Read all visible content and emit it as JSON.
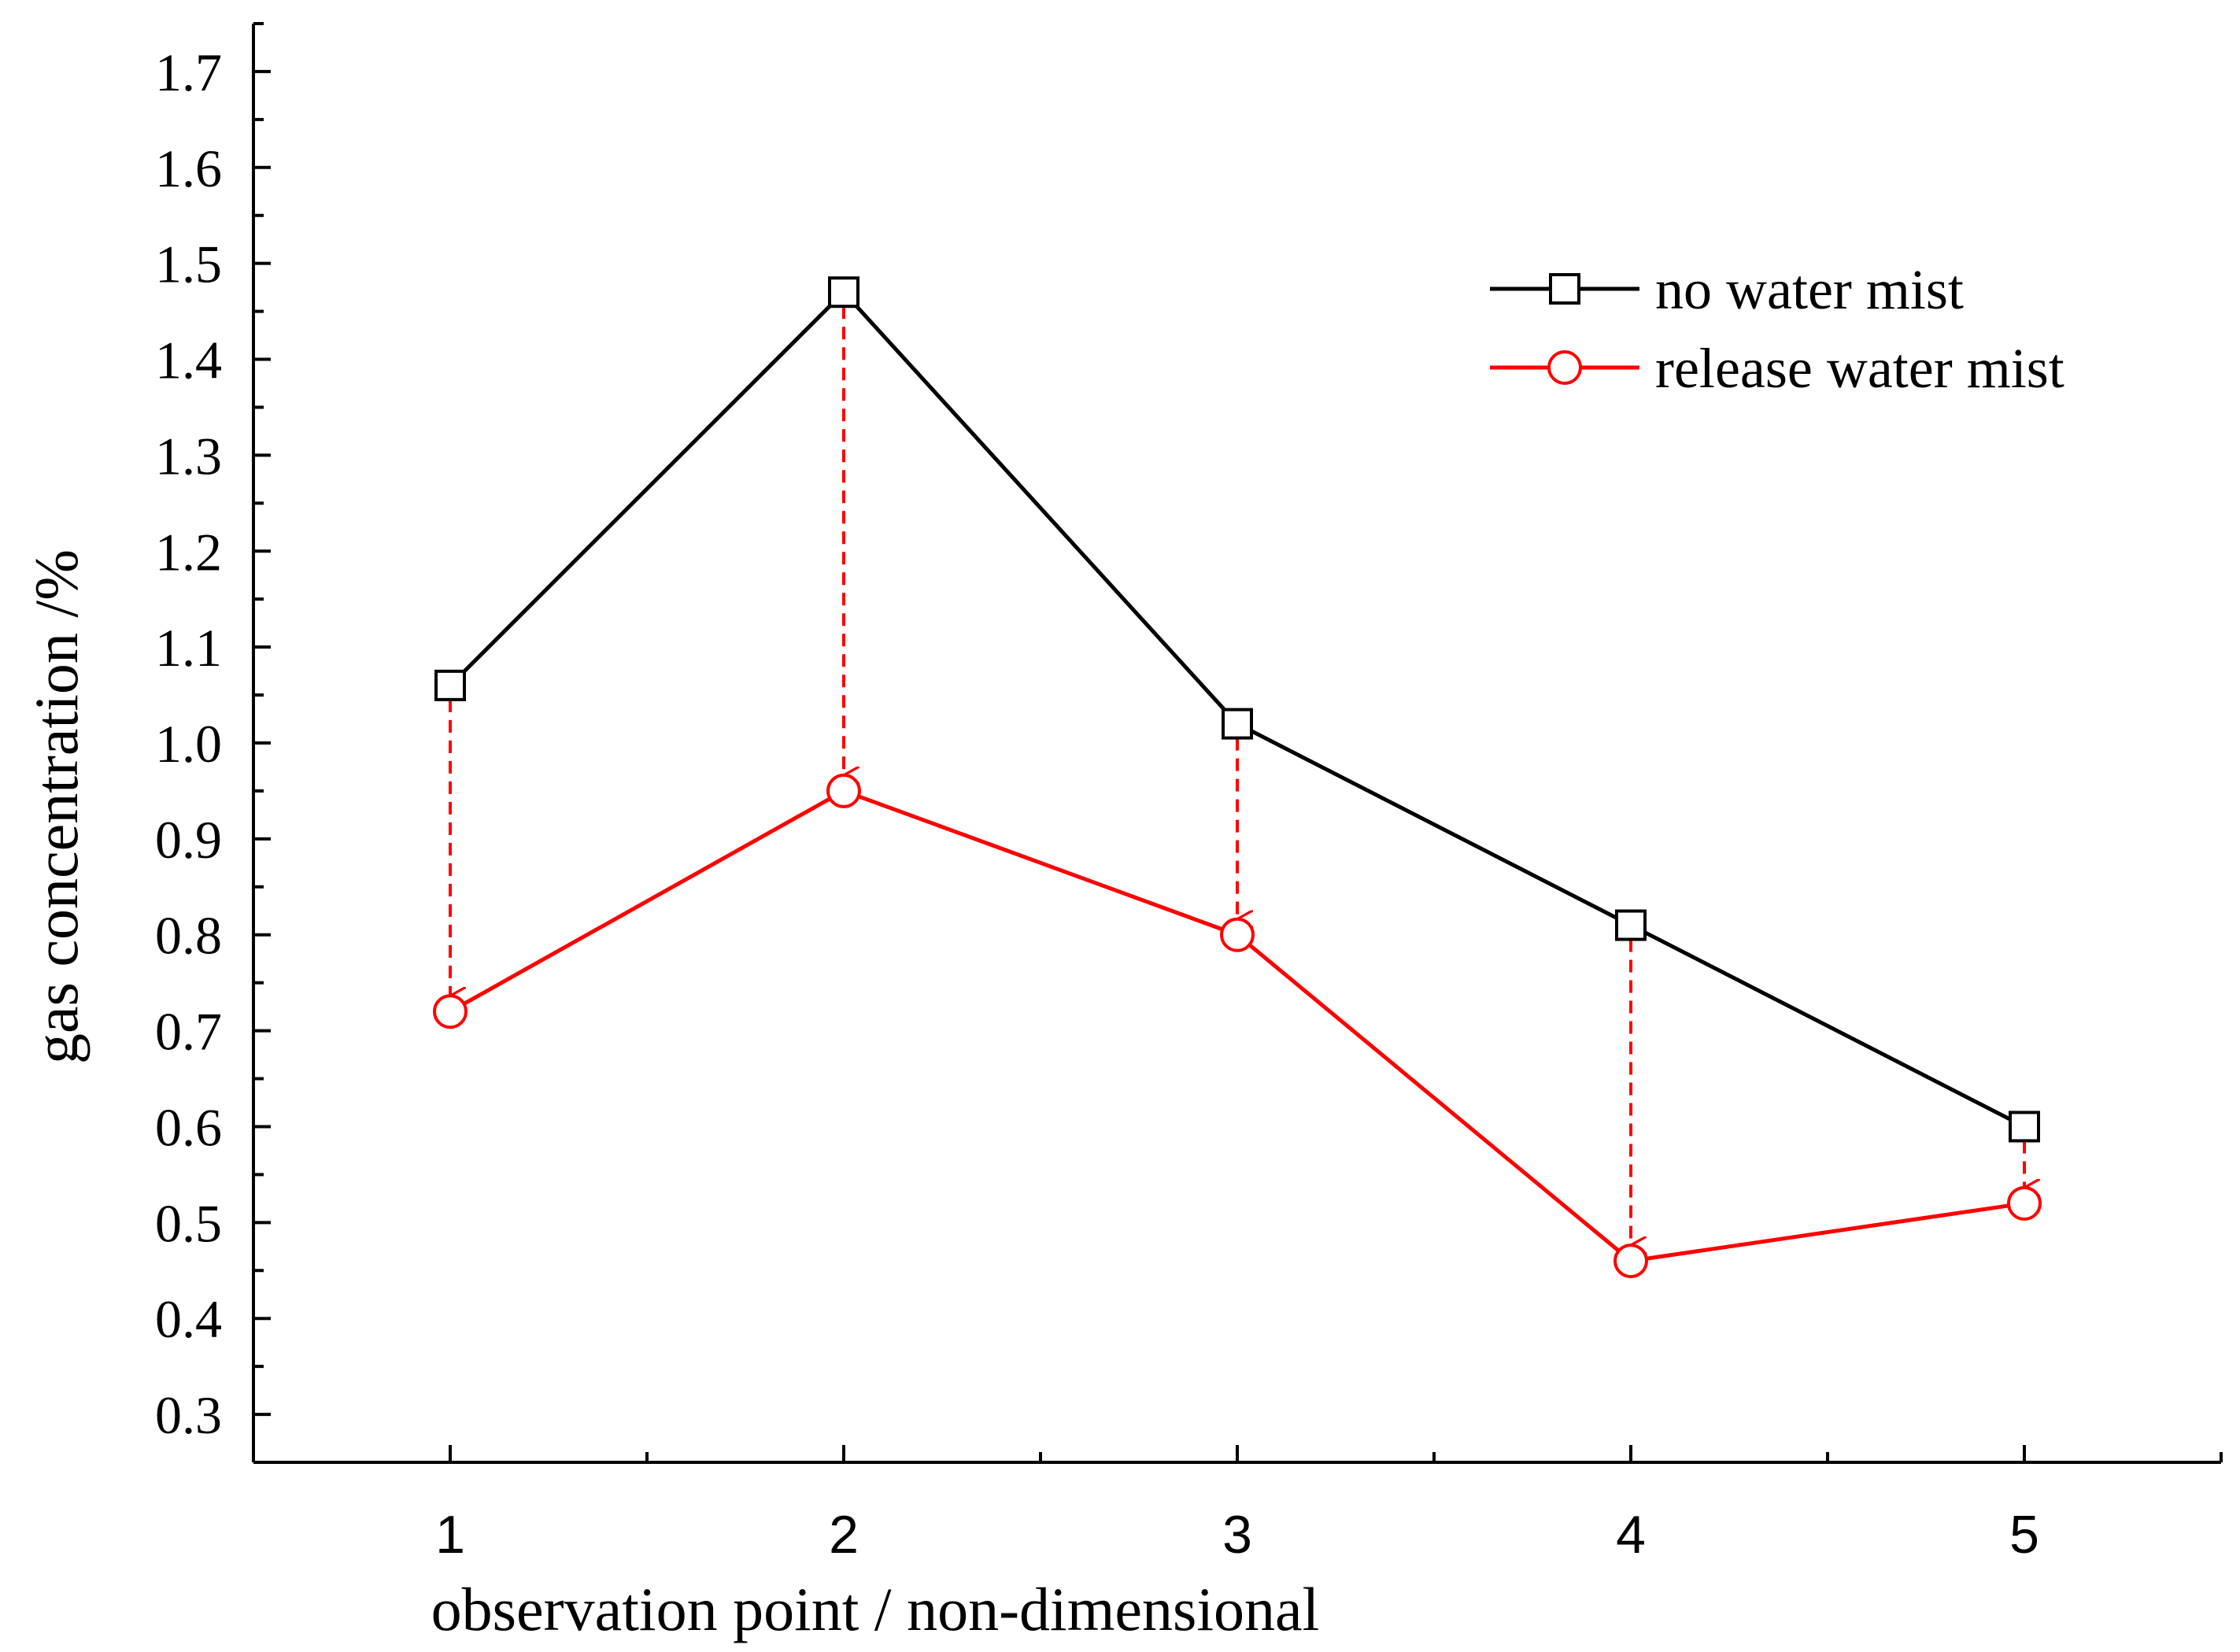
{
  "chart_data": {
    "type": "line",
    "title": "",
    "xlabel": "observation point  / non-dimensional",
    "ylabel": "gas concentration /%",
    "x": [
      1,
      2,
      3,
      4,
      5
    ],
    "xlim": [
      0.5,
      5.5
    ],
    "ylim": [
      0.25,
      1.75
    ],
    "x_ticks": [
      1,
      2,
      3,
      4,
      5
    ],
    "x_tick_labels": [
      "1",
      "2",
      "3",
      "4",
      "5"
    ],
    "y_ticks": [
      0.3,
      0.4,
      0.5,
      0.6,
      0.7,
      0.8,
      0.9,
      1.0,
      1.1,
      1.2,
      1.3,
      1.4,
      1.5,
      1.6,
      1.7
    ],
    "y_tick_labels": [
      "0.3",
      "0.4",
      "0.5",
      "0.6",
      "0.7",
      "0.8",
      "0.9",
      "1.0",
      "1.1",
      "1.2",
      "1.3",
      "1.4",
      "1.5",
      "1.6",
      "1.7"
    ],
    "grid": false,
    "legend_position": "top-right",
    "series": [
      {
        "name": "no water mist",
        "values": [
          1.06,
          1.47,
          1.02,
          0.81,
          0.6
        ],
        "color": "#000000",
        "marker": "square"
      },
      {
        "name": "release water mist",
        "values": [
          0.72,
          0.95,
          0.8,
          0.46,
          0.52
        ],
        "color": "#ff0000",
        "marker": "circle"
      }
    ],
    "annotations": {
      "type": "dashed-arrows",
      "from_series": "no water mist",
      "to_series": "release water mist",
      "color": "#ff0000"
    }
  }
}
